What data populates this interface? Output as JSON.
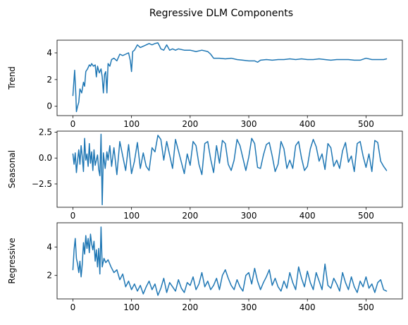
{
  "chart_data": {
    "title": "Regressive DLM Components",
    "type": "line",
    "color": "#1f77b4",
    "grid": false,
    "panels": [
      {
        "ylabel": "Trend",
        "xlim": [
          -27,
          562
        ],
        "ylim": [
          -0.7,
          4.95
        ],
        "xticks": [
          0,
          100,
          200,
          300,
          400,
          500
        ],
        "xtick_labels": [
          "0",
          "100",
          "200",
          "300",
          "400",
          "500"
        ],
        "yticks": [
          0,
          2,
          4
        ],
        "ytick_labels": [
          "0",
          "2",
          "4"
        ],
        "series": [
          {
            "x": [
              0,
              3,
              5,
              6,
              8,
              10,
              12,
              15,
              18,
              20,
              22,
              25,
              28,
              30,
              32,
              35,
              38,
              40,
              42,
              45,
              48,
              50,
              52,
              54,
              56,
              58,
              60,
              63,
              66,
              70,
              75,
              80,
              85,
              90,
              95,
              98,
              100,
              102,
              105,
              110,
              115,
              120,
              125,
              130,
              135,
              140,
              145,
              148,
              150,
              155,
              160,
              165,
              170,
              175,
              180,
              190,
              200,
              210,
              220,
              230,
              235,
              240,
              250,
              260,
              270,
              280,
              290,
              300,
              310,
              315,
              320,
              330,
              340,
              350,
              360,
              370,
              380,
              390,
              400,
              410,
              420,
              430,
              440,
              450,
              460,
              470,
              480,
              490,
              500,
              510,
              520,
              530,
              535
            ],
            "y": [
              0.8,
              2.7,
              0.9,
              -0.4,
              0.0,
              0.3,
              1.3,
              1.0,
              1.8,
              1.5,
              2.6,
              2.8,
              3.1,
              3.0,
              3.2,
              3.0,
              3.1,
              2.2,
              3.0,
              2.5,
              2.8,
              2.2,
              1.0,
              2.4,
              2.6,
              1.0,
              3.2,
              3.0,
              3.5,
              3.6,
              3.4,
              3.9,
              3.8,
              3.9,
              4.0,
              3.4,
              2.6,
              4.1,
              4.2,
              4.6,
              4.4,
              4.5,
              4.6,
              4.7,
              4.6,
              4.7,
              4.75,
              4.5,
              4.3,
              4.2,
              4.6,
              4.2,
              4.3,
              4.2,
              4.3,
              4.2,
              4.2,
              4.1,
              4.2,
              4.1,
              3.9,
              3.6,
              3.6,
              3.55,
              3.6,
              3.5,
              3.45,
              3.4,
              3.4,
              3.3,
              3.45,
              3.5,
              3.45,
              3.5,
              3.5,
              3.55,
              3.5,
              3.55,
              3.5,
              3.5,
              3.55,
              3.5,
              3.45,
              3.5,
              3.5,
              3.5,
              3.45,
              3.45,
              3.6,
              3.5,
              3.5,
              3.5,
              3.55
            ]
          }
        ]
      },
      {
        "ylabel": "Seasonal",
        "xlim": [
          -27,
          562
        ],
        "ylim": [
          -4.75,
          2.6
        ],
        "xticks": [
          0,
          100,
          200,
          300,
          400,
          500
        ],
        "xtick_labels": [
          "0",
          "100",
          "200",
          "300",
          "400",
          "500"
        ],
        "yticks": [
          -2.5,
          0.0,
          2.5
        ],
        "ytick_labels": [
          "−2.5",
          "0.0",
          "2.5"
        ],
        "series": [
          {
            "x": [
              0,
              2,
              4,
              6,
              8,
              10,
              12,
              14,
              16,
              18,
              20,
              22,
              24,
              26,
              28,
              30,
              32,
              34,
              36,
              38,
              40,
              42,
              44,
              46,
              48,
              50,
              52,
              55,
              58,
              60,
              63,
              66,
              70,
              75,
              80,
              85,
              90,
              95,
              100,
              105,
              110,
              115,
              120,
              125,
              130,
              135,
              140,
              145,
              150,
              155,
              160,
              165,
              170,
              175,
              180,
              185,
              190,
              195,
              200,
              205,
              210,
              215,
              220,
              225,
              230,
              235,
              240,
              245,
              250,
              255,
              260,
              265,
              270,
              275,
              280,
              285,
              290,
              295,
              300,
              305,
              310,
              315,
              320,
              325,
              330,
              335,
              340,
              345,
              350,
              355,
              360,
              365,
              370,
              375,
              380,
              385,
              390,
              395,
              400,
              405,
              410,
              415,
              420,
              425,
              430,
              435,
              440,
              445,
              450,
              455,
              460,
              465,
              470,
              475,
              480,
              485,
              490,
              495,
              500,
              505,
              510,
              515,
              520,
              525,
              530,
              535
            ],
            "y": [
              0.4,
              -0.6,
              0.5,
              -1.4,
              -0.2,
              0.8,
              -0.6,
              1.2,
              0.1,
              -1.3,
              1.9,
              -0.2,
              0.4,
              -0.8,
              1.4,
              -0.5,
              0.6,
              -1.2,
              0.8,
              -0.7,
              -0.2,
              0.3,
              -1.1,
              -1.7,
              2.3,
              -4.5,
              0.5,
              -1.0,
              0.6,
              -0.2,
              1.2,
              -0.8,
              1.0,
              -1.6,
              1.6,
              0.2,
              -1.2,
              1.3,
              -1.5,
              -0.3,
              1.5,
              -1.0,
              0.5,
              -0.8,
              -1.2,
              1.0,
              0.6,
              2.2,
              1.8,
              -0.2,
              1.6,
              0.3,
              -1.0,
              1.8,
              0.7,
              -0.4,
              -1.5,
              0.4,
              -0.7,
              1.6,
              1.2,
              -0.6,
              -1.6,
              1.4,
              1.6,
              -0.1,
              -1.4,
              1.2,
              -0.5,
              1.7,
              1.4,
              -0.6,
              -1.2,
              -0.2,
              1.8,
              1.2,
              0.0,
              -1.2,
              0.1,
              1.9,
              1.4,
              -0.9,
              -1.0,
              0.3,
              1.3,
              1.5,
              0.2,
              -1.3,
              -0.6,
              1.6,
              0.9,
              -1.0,
              -0.2,
              -1.0,
              1.2,
              1.6,
              0.0,
              -1.2,
              -0.8,
              0.9,
              1.8,
              1.1,
              -0.3,
              0.4,
              -1.1,
              1.4,
              1.0,
              -0.8,
              -0.2,
              -1.0,
              0.7,
              1.5,
              -0.4,
              0.2,
              -1.3,
              1.4,
              1.6,
              0.2,
              -0.9,
              0.4,
              -1.3,
              1.7,
              1.5,
              -0.3,
              -0.8,
              -1.2
            ]
          }
        ]
      },
      {
        "ylabel": "Regressive",
        "xlim": [
          -27,
          562
        ],
        "ylim": [
          0.35,
          5.7
        ],
        "xticks": [
          0,
          100,
          200,
          300,
          400,
          500
        ],
        "xtick_labels": [
          "0",
          "100",
          "200",
          "300",
          "400",
          "500"
        ],
        "yticks": [
          2,
          4
        ],
        "ytick_labels": [
          "2",
          "4"
        ],
        "series": [
          {
            "x": [
              0,
              2,
              4,
              6,
              8,
              10,
              12,
              14,
              16,
              18,
              20,
              22,
              24,
              26,
              28,
              30,
              32,
              34,
              36,
              38,
              40,
              42,
              44,
              46,
              48,
              50,
              53,
              56,
              60,
              65,
              70,
              75,
              80,
              85,
              90,
              95,
              100,
              105,
              110,
              115,
              120,
              125,
              130,
              135,
              140,
              145,
              150,
              155,
              160,
              165,
              170,
              175,
              180,
              185,
              190,
              195,
              200,
              205,
              210,
              215,
              220,
              225,
              230,
              235,
              240,
              245,
              250,
              255,
              260,
              265,
              270,
              275,
              280,
              285,
              290,
              295,
              300,
              305,
              310,
              315,
              320,
              325,
              330,
              335,
              340,
              345,
              350,
              355,
              360,
              365,
              370,
              375,
              380,
              385,
              390,
              395,
              400,
              405,
              410,
              415,
              420,
              425,
              430,
              435,
              440,
              445,
              450,
              455,
              460,
              465,
              470,
              475,
              480,
              485,
              490,
              495,
              500,
              505,
              510,
              515,
              520,
              525,
              530,
              535
            ],
            "y": [
              2.4,
              3.8,
              4.6,
              3.2,
              2.8,
              2.2,
              3.0,
              1.9,
              2.8,
              4.3,
              3.5,
              4.8,
              3.9,
              4.6,
              3.6,
              4.9,
              4.2,
              3.8,
              4.4,
              3.0,
              3.8,
              2.6,
              3.9,
              2.1,
              5.4,
              2.6,
              3.2,
              2.9,
              3.1,
              2.6,
              2.2,
              2.4,
              1.7,
              2.1,
              1.2,
              1.6,
              1.0,
              1.4,
              0.9,
              1.3,
              0.7,
              1.2,
              1.6,
              1.0,
              1.4,
              0.6,
              1.1,
              1.8,
              0.8,
              1.5,
              1.2,
              0.9,
              1.7,
              1.1,
              0.8,
              1.5,
              1.3,
              1.9,
              1.0,
              1.4,
              2.2,
              1.2,
              1.6,
              1.0,
              1.3,
              1.8,
              1.0,
              2.0,
              2.4,
              1.8,
              1.3,
              1.0,
              1.7,
              1.2,
              0.9,
              2.0,
              2.2,
              1.4,
              2.5,
              1.6,
              1.0,
              1.5,
              1.9,
              2.4,
              1.3,
              1.8,
              1.2,
              0.9,
              1.6,
              1.1,
              2.2,
              1.5,
              1.0,
              2.6,
              1.8,
              1.2,
              2.3,
              1.5,
              1.0,
              2.2,
              1.6,
              1.0,
              2.8,
              1.3,
              1.1,
              1.8,
              1.4,
              0.9,
              2.2,
              1.5,
              1.0,
              1.9,
              1.2,
              0.8,
              1.6,
              1.2,
              1.9,
              1.1,
              1.4,
              0.8,
              1.5,
              1.7,
              1.0,
              0.9
            ]
          }
        ]
      }
    ]
  }
}
